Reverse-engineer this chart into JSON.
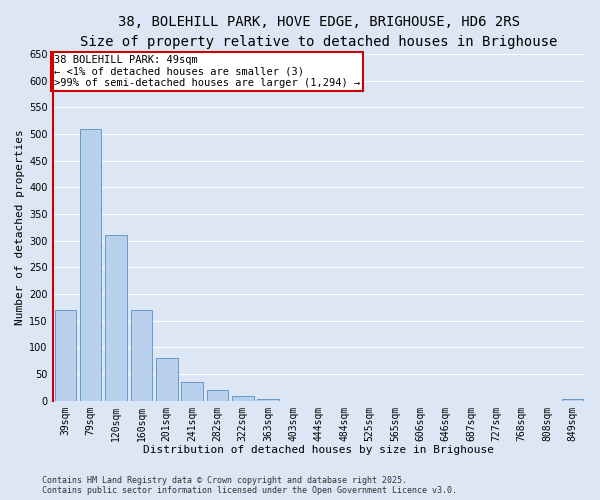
{
  "title_line1": "38, BOLEHILL PARK, HOVE EDGE, BRIGHOUSE, HD6 2RS",
  "title_line2": "Size of property relative to detached houses in Brighouse",
  "xlabel": "Distribution of detached houses by size in Brighouse",
  "ylabel": "Number of detached properties",
  "categories": [
    "39sqm",
    "79sqm",
    "120sqm",
    "160sqm",
    "201sqm",
    "241sqm",
    "282sqm",
    "322sqm",
    "363sqm",
    "403sqm",
    "444sqm",
    "484sqm",
    "525sqm",
    "565sqm",
    "606sqm",
    "646sqm",
    "687sqm",
    "727sqm",
    "768sqm",
    "808sqm",
    "849sqm"
  ],
  "values": [
    170,
    510,
    310,
    170,
    80,
    35,
    20,
    8,
    3,
    0,
    0,
    0,
    0,
    0,
    0,
    0,
    0,
    0,
    0,
    0,
    3
  ],
  "bar_color": "#b8d0eb",
  "bar_edge_color": "#6699cc",
  "annotation_box_text": "38 BOLEHILL PARK: 49sqm\n← <1% of detached houses are smaller (3)\n>99% of semi-detached houses are larger (1,294) →",
  "annotation_box_color": "#cc0000",
  "annotation_box_fill": "#ffffff",
  "ylim": [
    0,
    650
  ],
  "yticks": [
    0,
    50,
    100,
    150,
    200,
    250,
    300,
    350,
    400,
    450,
    500,
    550,
    600,
    650
  ],
  "background_color": "#dce6f5",
  "plot_bg_color": "#dce6f5",
  "grid_color": "#ffffff",
  "footnote": "Contains HM Land Registry data © Crown copyright and database right 2025.\nContains public sector information licensed under the Open Government Licence v3.0.",
  "title_fontsize": 10,
  "subtitle_fontsize": 9,
  "axis_label_fontsize": 8,
  "tick_fontsize": 7,
  "annotation_fontsize": 7.5,
  "footnote_fontsize": 6
}
